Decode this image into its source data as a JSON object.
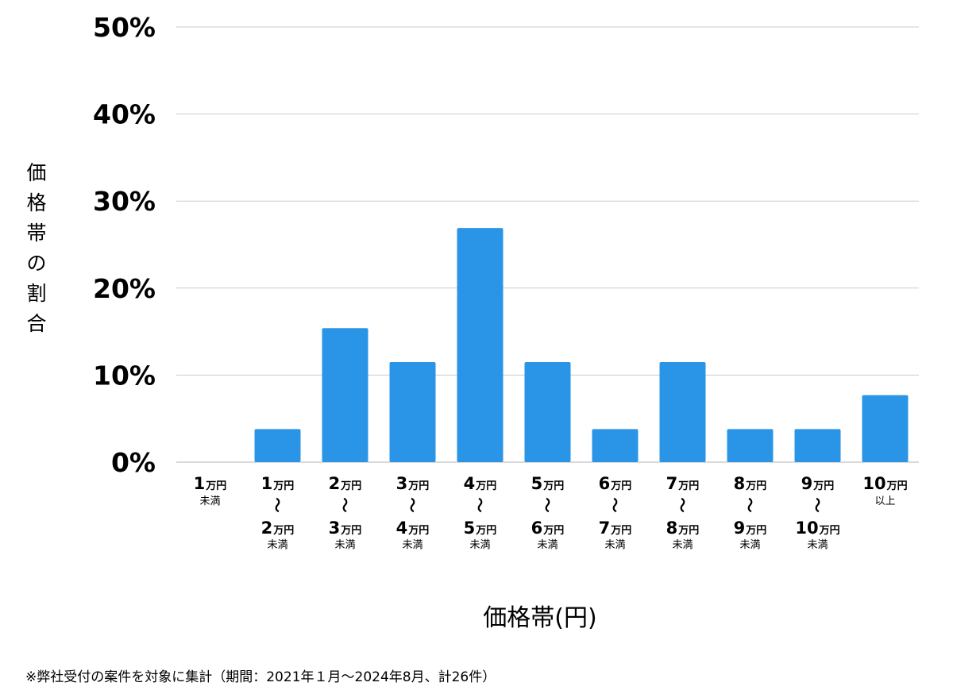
{
  "chart_data": {
    "type": "bar",
    "title": "",
    "xlabel": "価格帯(円)",
    "ylabel": "価格帯の割合",
    "ylim": [
      0,
      50
    ],
    "yticks": [
      0,
      10,
      20,
      30,
      40,
      50
    ],
    "ytick_labels": [
      "0%",
      "10%",
      "20%",
      "30%",
      "40%",
      "50%"
    ],
    "grid": true,
    "bar_color": "#2A95E6",
    "grid_color": "#cccccc",
    "categories": [
      {
        "from": "1",
        "from_unit": "万円",
        "to": "",
        "to_unit": "",
        "note": "未満"
      },
      {
        "from": "1",
        "from_unit": "万円",
        "to": "2",
        "to_unit": "万円",
        "note": "未満"
      },
      {
        "from": "2",
        "from_unit": "万円",
        "to": "3",
        "to_unit": "万円",
        "note": "未満"
      },
      {
        "from": "3",
        "from_unit": "万円",
        "to": "4",
        "to_unit": "万円",
        "note": "未満"
      },
      {
        "from": "4",
        "from_unit": "万円",
        "to": "5",
        "to_unit": "万円",
        "note": "未満"
      },
      {
        "from": "5",
        "from_unit": "万円",
        "to": "6",
        "to_unit": "万円",
        "note": "未満"
      },
      {
        "from": "6",
        "from_unit": "万円",
        "to": "7",
        "to_unit": "万円",
        "note": "未満"
      },
      {
        "from": "7",
        "from_unit": "万円",
        "to": "8",
        "to_unit": "万円",
        "note": "未満"
      },
      {
        "from": "8",
        "from_unit": "万円",
        "to": "9",
        "to_unit": "万円",
        "note": "未満"
      },
      {
        "from": "9",
        "from_unit": "万円",
        "to": "10",
        "to_unit": "万円",
        "note": "未満"
      },
      {
        "from": "10",
        "from_unit": "万円",
        "to": "",
        "to_unit": "",
        "note": "以上"
      }
    ],
    "range_mark": "〜",
    "values": [
      0,
      3.8,
      15.4,
      11.5,
      26.9,
      11.5,
      3.8,
      11.5,
      3.8,
      3.8,
      7.7
    ]
  },
  "footnote": "※弊社受付の案件を対象に集計（期間：2021年１月〜2024年8月、計26件）"
}
